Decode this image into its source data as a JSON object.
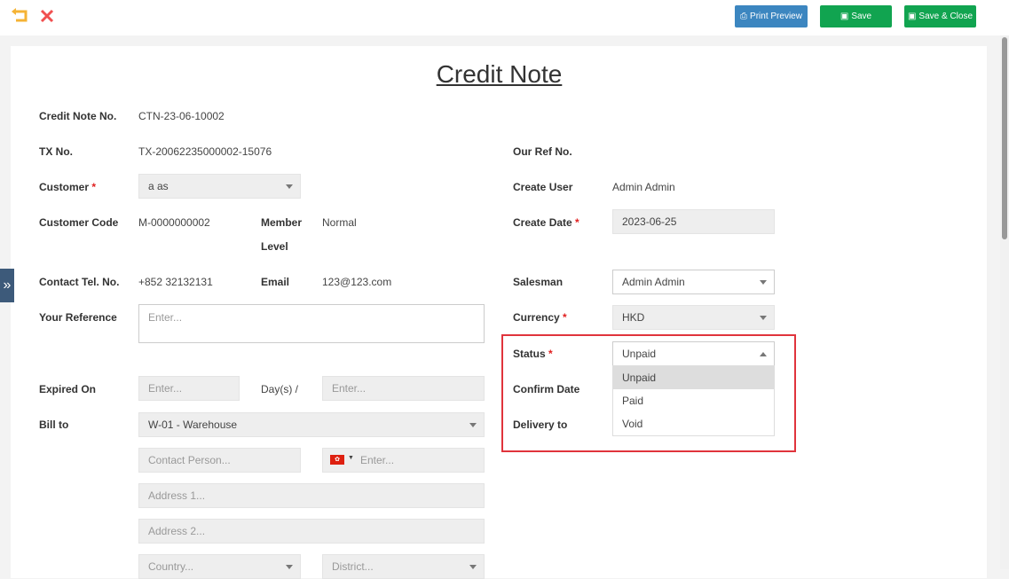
{
  "toolbar": {
    "print_preview": "Print Preview",
    "save": "Save",
    "save_close": "Save & Close",
    "colors": {
      "print": "#3c86c0",
      "save": "#11a450",
      "undo": "#f5b335",
      "close": "#f05050"
    }
  },
  "title": "Credit Note",
  "form": {
    "credit_note_no": {
      "label": "Credit Note No.",
      "value": "CTN-23-06-10002"
    },
    "tx_no": {
      "label": "TX No.",
      "value": "TX-20062235000002-15076"
    },
    "customer": {
      "label": "Customer",
      "value": "a as"
    },
    "customer_code": {
      "label": "Customer Code",
      "value": "M-0000000002"
    },
    "member_level": {
      "label1": "Member",
      "label2": "Level",
      "value": "Normal"
    },
    "contact_tel": {
      "label": "Contact Tel. No.",
      "value": "+852 32132131"
    },
    "email": {
      "label": "Email",
      "value": "123@123.com"
    },
    "your_reference": {
      "label": "Your Reference",
      "placeholder": "Enter..."
    },
    "expired_on": {
      "label": "Expired On",
      "placeholder": "Enter...",
      "days_label": "Day(s) /",
      "date_placeholder": "Enter..."
    },
    "bill_to": {
      "label": "Bill to",
      "value": "W-01 - Warehouse",
      "contact_placeholder": "Contact Person...",
      "phone_placeholder": "Enter...",
      "address1_placeholder": "Address 1...",
      "address2_placeholder": "Address 2...",
      "country_placeholder": "Country...",
      "district_placeholder": "District..."
    },
    "our_ref_no": {
      "label": "Our Ref No."
    },
    "create_user": {
      "label": "Create User",
      "value": "Admin Admin"
    },
    "create_date": {
      "label": "Create Date",
      "value": "2023-06-25"
    },
    "salesman": {
      "label": "Salesman",
      "value": "Admin Admin"
    },
    "currency": {
      "label": "Currency",
      "value": "HKD"
    },
    "status": {
      "label": "Status",
      "value": "Unpaid",
      "options": [
        "Unpaid",
        "Paid",
        "Void"
      ]
    },
    "confirm_date": {
      "label": "Confirm Date"
    },
    "delivery_to": {
      "label": "Delivery to"
    },
    "required_mark": "*"
  }
}
